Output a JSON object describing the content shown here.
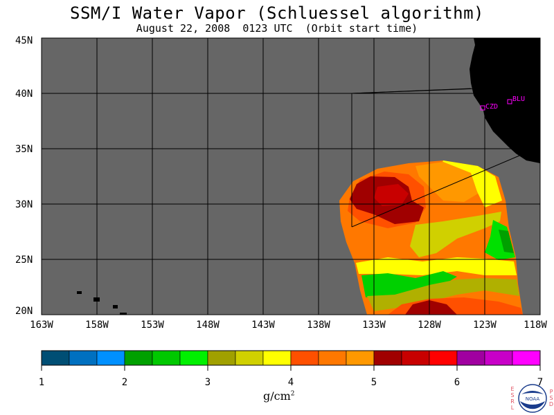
{
  "title": "SSM/I Water Vapor (Schluessel algorithm)",
  "subtitle": "August 22, 2008  0123 UTC  (Orbit start time)",
  "lat_labels": [
    "45N",
    "40N",
    "35N",
    "30N",
    "25N",
    "20N"
  ],
  "lon_labels": [
    "163W",
    "158W",
    "153W",
    "148W",
    "143W",
    "138W",
    "133W",
    "128W",
    "123W",
    "118W"
  ],
  "stations": [
    "CZD",
    "BLU"
  ],
  "colorbar": {
    "ticks": [
      "1",
      "2",
      "3",
      "4",
      "5",
      "6",
      "7"
    ],
    "units_base": "g/cm",
    "units_sup": "2",
    "colors": [
      "#004e74",
      "#0070c0",
      "#0090ff",
      "#00a000",
      "#00c800",
      "#00f000",
      "#a0a000",
      "#d0d000",
      "#ffff00",
      "#ff5000",
      "#ff7800",
      "#ff9800",
      "#a00000",
      "#c80000",
      "#ff0000",
      "#a000a0",
      "#c800c8",
      "#ff00ff"
    ]
  },
  "logo": {
    "left_letters": "ESRL",
    "right_letters": "PSD",
    "badge": "NOAA"
  },
  "colors": {
    "ocean": "#666666",
    "land": "#000000",
    "station": "#ff00ff"
  }
}
